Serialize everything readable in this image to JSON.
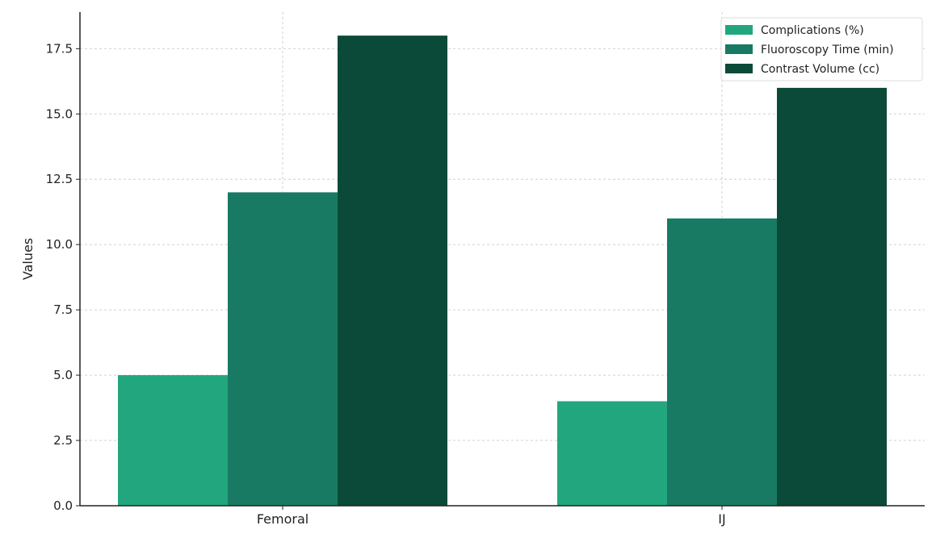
{
  "chart_data": {
    "type": "bar",
    "title": "",
    "xlabel": "",
    "ylabel": "Values",
    "categories": [
      "Femoral",
      "IJ"
    ],
    "series": [
      {
        "name": "Complications (%)",
        "values": [
          5,
          4
        ],
        "color": "#22a67e"
      },
      {
        "name": "Fluoroscopy Time (min)",
        "values": [
          12,
          11
        ],
        "color": "#187a62"
      },
      {
        "name": "Contrast Volume (cc)",
        "values": [
          18,
          16
        ],
        "color": "#0b4a38"
      }
    ],
    "ylim": [
      0,
      18.9
    ],
    "yticks": [
      "0.0",
      "2.5",
      "5.0",
      "7.5",
      "10.0",
      "12.5",
      "15.0",
      "17.5"
    ],
    "grid": true,
    "legend_position": "top-right"
  }
}
